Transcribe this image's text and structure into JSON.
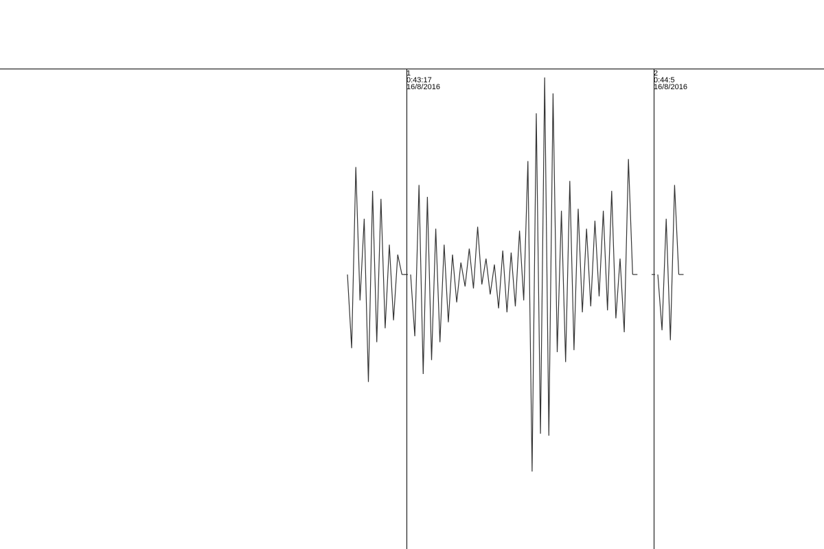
{
  "colors": {
    "background": "#ffffff",
    "axis": "#000000",
    "marker": "#000000",
    "trace": "#333333"
  },
  "markers": [
    {
      "number": "1",
      "time": "0:43:17",
      "date": "16/8/2016"
    },
    {
      "number": "2",
      "time": "0:44:5",
      "date": "16/8/2016"
    }
  ],
  "chart_data": {
    "type": "line",
    "title": "",
    "xlabel": "",
    "ylabel": "",
    "grid": false,
    "legend": "none",
    "segments": [
      {
        "marker_before": null,
        "amplitudes": [
          0,
          -0.37,
          0.54,
          -0.13,
          0.28,
          -0.54,
          0.42,
          -0.34,
          0.38,
          -0.27,
          0.15,
          -0.23,
          0.1,
          0
        ]
      },
      {
        "marker_before": 1,
        "amplitudes": [
          0,
          -0.31,
          0.45,
          -0.5,
          0.39,
          -0.43,
          0.23,
          -0.34,
          0.15,
          -0.24,
          0.1,
          -0.14,
          0.06,
          -0.06,
          0.13,
          -0.07,
          0.24,
          -0.05,
          0.08,
          -0.1,
          0.05,
          -0.17,
          0.12,
          -0.19,
          0.11,
          -0.16,
          0.22,
          -0.13,
          0.57,
          -0.99,
          0.81,
          -0.8,
          0.99,
          -0.81,
          0.91,
          -0.39,
          0.32,
          -0.44,
          0.47,
          -0.38,
          0.33,
          -0.19,
          0.23,
          -0.16,
          0.27,
          -0.11,
          0.32,
          -0.18,
          0.42,
          -0.22,
          0.08,
          -0.29,
          0.58,
          0
        ]
      },
      {
        "marker_before": 2,
        "amplitudes": [
          0,
          -0.28,
          0.28,
          -0.33,
          0.45,
          0
        ]
      }
    ]
  }
}
